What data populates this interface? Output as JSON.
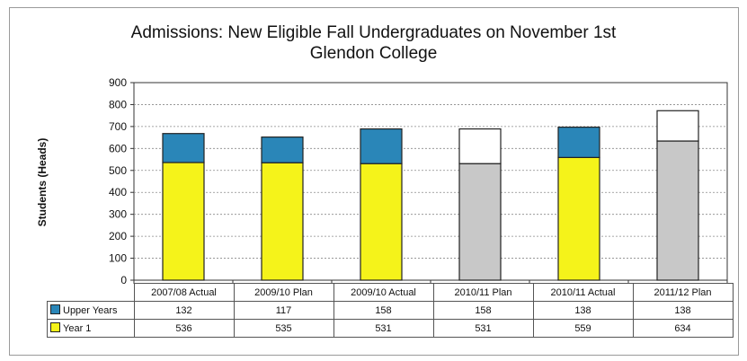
{
  "chart_data": {
    "type": "bar",
    "stacked": true,
    "title": "Admissions: New Eligible Fall Undergraduates on  November 1st",
    "subtitle": "Glendon College",
    "ylabel": "Students (Heads)",
    "xlabel": "",
    "ylim": [
      0,
      900
    ],
    "yticks": [
      "0",
      "100",
      "200",
      "300",
      "400",
      "500",
      "600",
      "700",
      "800",
      "900"
    ],
    "grid": true,
    "legend_placement": "data table",
    "categories": [
      "2007/08 Actual",
      "2009/10 Plan",
      "2009/10 Actual",
      "2010/11 Plan",
      "2010/11 Actual",
      "2011/12 Plan"
    ],
    "series": [
      {
        "name": "Year 1",
        "values": [
          536,
          535,
          531,
          531,
          559,
          634
        ],
        "color": "#f5f31a",
        "plan_color": "#c8c8c8"
      },
      {
        "name": "Upper Years",
        "values": [
          132,
          117,
          158,
          158,
          138,
          138
        ],
        "color": "#2a86b8",
        "plan_color": "#ffffff"
      }
    ],
    "data_table": {
      "rows": [
        {
          "label": "Upper Years",
          "values": [
            "132",
            "117",
            "158",
            "158",
            "138",
            "138"
          ]
        },
        {
          "label": "Year 1",
          "values": [
            "536",
            "535",
            "531",
            "531",
            "559",
            "634"
          ]
        }
      ]
    },
    "projection_columns": [
      "2010/11 Plan",
      "2011/12 Plan"
    ]
  }
}
